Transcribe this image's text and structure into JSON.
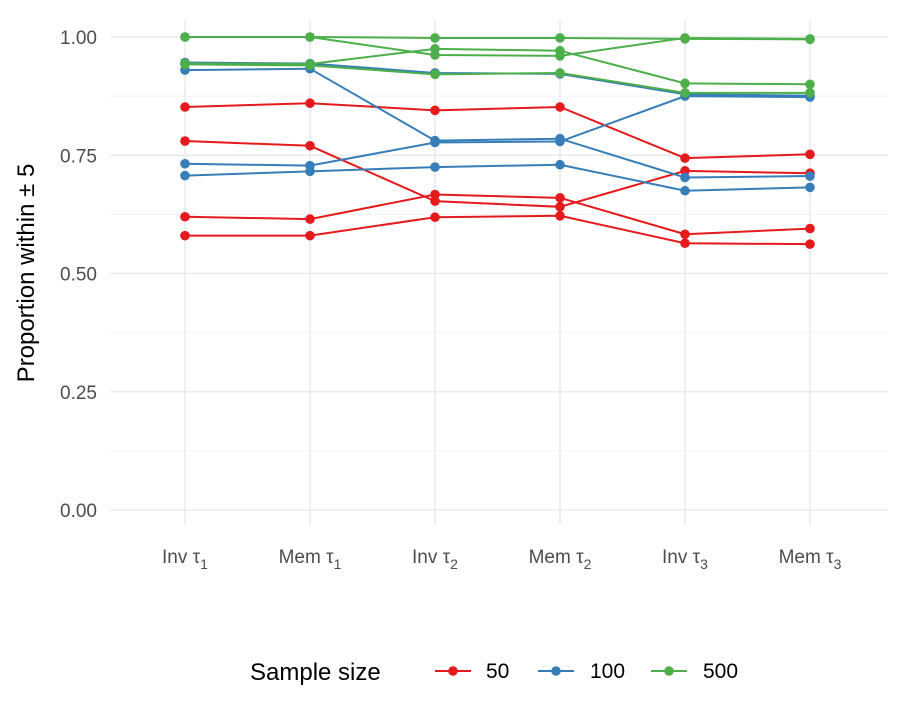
{
  "chart_data": {
    "type": "line",
    "categories": [
      "Inv τ1",
      "Mem τ1",
      "Inv τ2",
      "Mem τ2",
      "Inv τ3",
      "Mem τ3"
    ],
    "category_labels": [
      {
        "base": "Inv τ",
        "sub": "1"
      },
      {
        "base": "Mem τ",
        "sub": "1"
      },
      {
        "base": "Inv τ",
        "sub": "2"
      },
      {
        "base": "Mem τ",
        "sub": "2"
      },
      {
        "base": "Inv τ",
        "sub": "3"
      },
      {
        "base": "Mem τ",
        "sub": "3"
      }
    ],
    "ylabel": "Proportion within ± 5",
    "xlabel": "",
    "ylim": [
      0,
      1
    ],
    "yticks": [
      "0.00",
      "0.25",
      "0.50",
      "0.75",
      "1.00"
    ],
    "grid": true,
    "legend": {
      "title": "Sample size",
      "position": "bottom"
    },
    "colors": {
      "50": "#e41a1c",
      "100": "#377eb8",
      "500": "#4daf4a"
    },
    "series": [
      {
        "group": "50",
        "values": [
          0.852,
          0.86,
          0.845,
          0.852,
          0.744,
          0.752
        ]
      },
      {
        "group": "50",
        "values": [
          0.78,
          0.77,
          0.653,
          0.641,
          0.717,
          0.712
        ]
      },
      {
        "group": "50",
        "values": [
          0.62,
          0.615,
          0.667,
          0.66,
          0.583,
          0.595
        ]
      },
      {
        "group": "50",
        "values": [
          0.58,
          0.58,
          0.619,
          0.622,
          0.564,
          0.562
        ]
      },
      {
        "group": "100",
        "values": [
          0.946,
          0.944,
          0.924,
          0.922,
          0.879,
          0.876
        ]
      },
      {
        "group": "100",
        "values": [
          0.93,
          0.933,
          0.781,
          0.785,
          0.703,
          0.706
        ]
      },
      {
        "group": "100",
        "values": [
          0.732,
          0.728,
          0.777,
          0.779,
          0.875,
          0.873
        ]
      },
      {
        "group": "100",
        "values": [
          0.707,
          0.716,
          0.725,
          0.73,
          0.675,
          0.682
        ]
      },
      {
        "group": "500",
        "values": [
          1.0,
          1.0,
          0.998,
          0.998,
          0.996,
          0.995
        ]
      },
      {
        "group": "500",
        "values": [
          1.0,
          1.0,
          0.962,
          0.96,
          0.998,
          0.996
        ]
      },
      {
        "group": "500",
        "values": [
          0.944,
          0.943,
          0.975,
          0.971,
          0.902,
          0.9
        ]
      },
      {
        "group": "500",
        "values": [
          0.942,
          0.94,
          0.921,
          0.924,
          0.882,
          0.882
        ]
      }
    ]
  }
}
